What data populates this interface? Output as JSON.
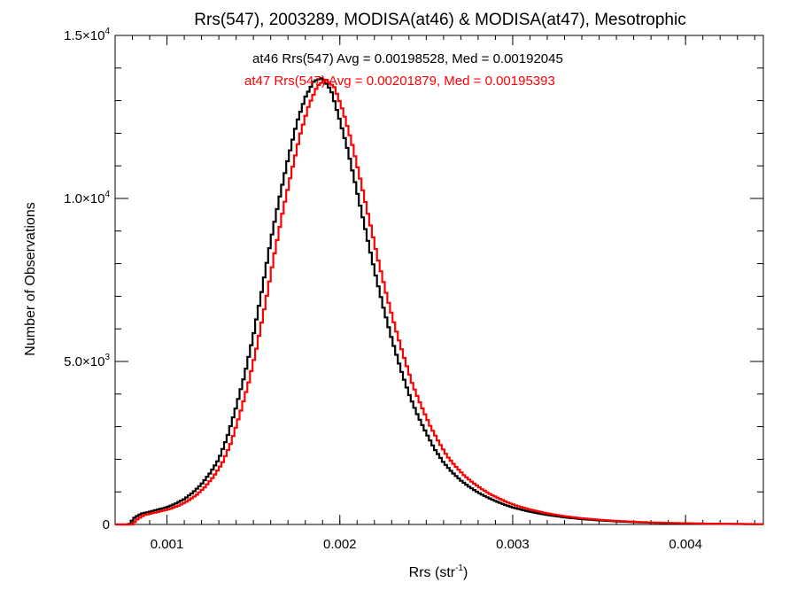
{
  "chart_data": {
    "type": "line",
    "title": "Rrs(547), 2003289, MODISA(at46) & MODISA(at47), Mesotrophic",
    "xlabel": {
      "main": "Rrs (str",
      "sup": "-1",
      "tail": ")"
    },
    "ylabel": "Number of Observations",
    "xlim": [
      0.0007,
      0.00445
    ],
    "ylim": [
      0,
      15000
    ],
    "x_ticks": [
      0.001,
      0.002,
      0.003,
      0.004
    ],
    "x_tick_labels": [
      "0.001",
      "0.002",
      "0.003",
      "0.004"
    ],
    "x_minor_step": 0.0001,
    "y_ticks": [
      {
        "value": 0,
        "label": "0",
        "exp": ""
      },
      {
        "value": 5000,
        "label": "5.0×10",
        "exp": "3"
      },
      {
        "value": 10000,
        "label": "1.0×10",
        "exp": "4"
      },
      {
        "value": 15000,
        "label": "1.5×10",
        "exp": "4"
      }
    ],
    "y_minor_step": 1000,
    "grid": false,
    "series": [
      {
        "name": "at46",
        "color": "#000000",
        "annotation": "at46 Rrs(547) Avg = 0.00198528, Med = 0.00192045",
        "points": [
          [
            0.0007,
            0
          ],
          [
            0.00078,
            0
          ],
          [
            0.00081,
            200
          ],
          [
            0.00085,
            330
          ],
          [
            0.0009,
            390
          ],
          [
            0.00095,
            460
          ],
          [
            0.001,
            530
          ],
          [
            0.00105,
            640
          ],
          [
            0.0011,
            780
          ],
          [
            0.00115,
            980
          ],
          [
            0.0012,
            1240
          ],
          [
            0.00125,
            1580
          ],
          [
            0.0013,
            2000
          ],
          [
            0.00135,
            2700
          ],
          [
            0.0014,
            3600
          ],
          [
            0.00145,
            4600
          ],
          [
            0.0015,
            5800
          ],
          [
            0.00155,
            7200
          ],
          [
            0.0016,
            8700
          ],
          [
            0.00165,
            10000
          ],
          [
            0.0017,
            11200
          ],
          [
            0.00175,
            12300
          ],
          [
            0.0018,
            13100
          ],
          [
            0.00185,
            13600
          ],
          [
            0.0019,
            13700
          ],
          [
            0.00195,
            13300
          ],
          [
            0.002,
            12400
          ],
          [
            0.00205,
            11400
          ],
          [
            0.0021,
            10200
          ],
          [
            0.00215,
            9000
          ],
          [
            0.0022,
            7800
          ],
          [
            0.00225,
            6700
          ],
          [
            0.0023,
            5700
          ],
          [
            0.00235,
            4800
          ],
          [
            0.0024,
            4000
          ],
          [
            0.00245,
            3350
          ],
          [
            0.0025,
            2800
          ],
          [
            0.00255,
            2300
          ],
          [
            0.0026,
            1900
          ],
          [
            0.00265,
            1600
          ],
          [
            0.0027,
            1350
          ],
          [
            0.00275,
            1150
          ],
          [
            0.0028,
            980
          ],
          [
            0.00285,
            840
          ],
          [
            0.0029,
            720
          ],
          [
            0.00295,
            610
          ],
          [
            0.003,
            520
          ],
          [
            0.0031,
            390
          ],
          [
            0.0032,
            290
          ],
          [
            0.0033,
            220
          ],
          [
            0.0034,
            165
          ],
          [
            0.0035,
            125
          ],
          [
            0.0036,
            95
          ],
          [
            0.0037,
            72
          ],
          [
            0.0038,
            55
          ],
          [
            0.0039,
            42
          ],
          [
            0.004,
            32
          ],
          [
            0.0041,
            24
          ],
          [
            0.0042,
            18
          ],
          [
            0.0043,
            14
          ],
          [
            0.0044,
            10
          ],
          [
            0.00445,
            8
          ]
        ]
      },
      {
        "name": "at47",
        "color": "#ff0000",
        "annotation": "at47 Rrs(547) Avg = 0.00201879, Med = 0.00195393",
        "points": [
          [
            0.0007,
            0
          ],
          [
            0.0008,
            0
          ],
          [
            0.00083,
            170
          ],
          [
            0.00087,
            290
          ],
          [
            0.00092,
            350
          ],
          [
            0.00097,
            410
          ],
          [
            0.00102,
            480
          ],
          [
            0.00107,
            580
          ],
          [
            0.00112,
            720
          ],
          [
            0.00117,
            900
          ],
          [
            0.00122,
            1150
          ],
          [
            0.00127,
            1470
          ],
          [
            0.00132,
            1880
          ],
          [
            0.00137,
            2500
          ],
          [
            0.00142,
            3350
          ],
          [
            0.00147,
            4300
          ],
          [
            0.00152,
            5450
          ],
          [
            0.00157,
            6800
          ],
          [
            0.00162,
            8250
          ],
          [
            0.00167,
            9600
          ],
          [
            0.00172,
            10800
          ],
          [
            0.00177,
            11950
          ],
          [
            0.00182,
            12850
          ],
          [
            0.00187,
            13450
          ],
          [
            0.00192,
            13650
          ],
          [
            0.00197,
            13400
          ],
          [
            0.00202,
            12650
          ],
          [
            0.00207,
            11700
          ],
          [
            0.00212,
            10550
          ],
          [
            0.00217,
            9350
          ],
          [
            0.00222,
            8150
          ],
          [
            0.00227,
            7050
          ],
          [
            0.00232,
            6050
          ],
          [
            0.00237,
            5150
          ],
          [
            0.00242,
            4300
          ],
          [
            0.00247,
            3650
          ],
          [
            0.00252,
            3050
          ],
          [
            0.00257,
            2550
          ],
          [
            0.00262,
            2100
          ],
          [
            0.00267,
            1780
          ],
          [
            0.00272,
            1500
          ],
          [
            0.00277,
            1280
          ],
          [
            0.00282,
            1090
          ],
          [
            0.00287,
            930
          ],
          [
            0.00292,
            800
          ],
          [
            0.00297,
            680
          ],
          [
            0.00302,
            580
          ],
          [
            0.0031,
            460
          ],
          [
            0.0032,
            340
          ],
          [
            0.0033,
            255
          ],
          [
            0.0034,
            190
          ],
          [
            0.0035,
            145
          ],
          [
            0.0036,
            110
          ],
          [
            0.0037,
            83
          ],
          [
            0.0038,
            63
          ],
          [
            0.0039,
            48
          ],
          [
            0.004,
            36
          ],
          [
            0.0041,
            27
          ],
          [
            0.0042,
            21
          ],
          [
            0.0043,
            16
          ],
          [
            0.0044,
            12
          ],
          [
            0.00445,
            10
          ]
        ]
      }
    ]
  }
}
